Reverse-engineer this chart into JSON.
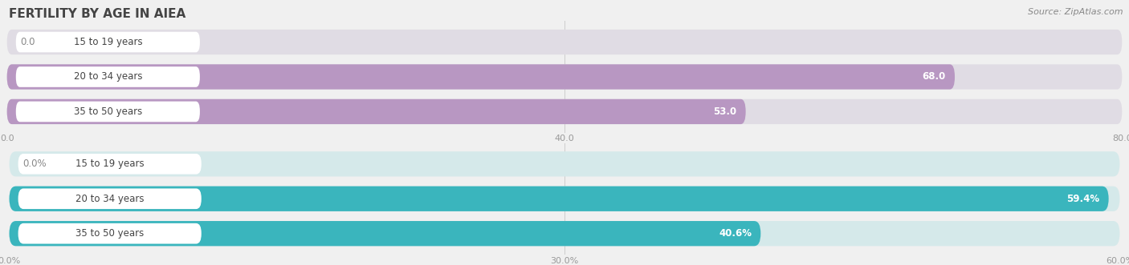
{
  "title": "FERTILITY BY AGE IN AIEA",
  "source": "Source: ZipAtlas.com",
  "top_chart": {
    "categories": [
      "15 to 19 years",
      "20 to 34 years",
      "35 to 50 years"
    ],
    "values": [
      0.0,
      68.0,
      53.0
    ],
    "xmax": 80,
    "xticks": [
      0.0,
      40.0,
      80.0
    ],
    "xtick_labels": [
      "0.0",
      "40.0",
      "80.0"
    ],
    "bar_color": "#b897c2",
    "bar_bg_color": "#e0dde3",
    "value_labels": [
      "0.0",
      "68.0",
      "53.0"
    ]
  },
  "bottom_chart": {
    "categories": [
      "15 to 19 years",
      "20 to 34 years",
      "35 to 50 years"
    ],
    "values": [
      0.0,
      59.4,
      40.6
    ],
    "xmax": 60,
    "xticks": [
      0.0,
      30.0,
      60.0
    ],
    "xtick_labels": [
      "0.0%",
      "30.0%",
      "60.0%"
    ],
    "bar_color": "#3ab5bd",
    "bar_bg_color": "#daeaeb",
    "value_labels": [
      "0.0%",
      "59.4%",
      "40.6%"
    ]
  },
  "title_fontsize": 11,
  "source_fontsize": 8,
  "tick_fontsize": 8,
  "cat_label_fontsize": 8.5,
  "val_label_fontsize": 8.5,
  "bg_color": "#f0f0f0",
  "bar_bg_light": "#e8e8e8",
  "white_label_bg": "#ffffff"
}
